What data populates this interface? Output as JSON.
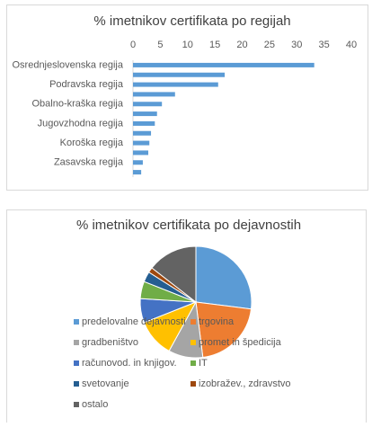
{
  "chart_data": [
    {
      "type": "hbar",
      "title": "% imetnikov certifikata po regijah",
      "categories": [
        "Osrednjeslovenska regija",
        null,
        "Podravska regija",
        null,
        "Obalno-kraška regija",
        null,
        "Jugovzhodna regija",
        null,
        "Koroška regija",
        null,
        "Zasavska regija",
        null
      ],
      "values": [
        33.2,
        16.8,
        15.6,
        7.7,
        5.3,
        4.4,
        4.0,
        3.3,
        3.0,
        2.8,
        1.8,
        1.5
      ],
      "color": "#5b9bd5",
      "xlim": [
        0,
        40
      ],
      "xticks": [
        0,
        5,
        10,
        15,
        20,
        25,
        30,
        35,
        40
      ]
    },
    {
      "type": "pie",
      "title": "% imetnikov certifikata po dejavnostih",
      "categories": [
        "predelovalne dejavnosti",
        "trgovina",
        "gradbeništvo",
        "promet in špedicija",
        "računovod. in knjigov.",
        "IT",
        "svetovanje",
        "izobražev., zdravstvo",
        "ostalo"
      ],
      "values": [
        27,
        21,
        10,
        11,
        7,
        5,
        3,
        1.5,
        14.5
      ],
      "colors": [
        "#5b9bd5",
        "#ed7d31",
        "#a5a5a5",
        "#ffc000",
        "#4472c4",
        "#70ad47",
        "#255e91",
        "#9e480e",
        "#636363"
      ]
    }
  ]
}
